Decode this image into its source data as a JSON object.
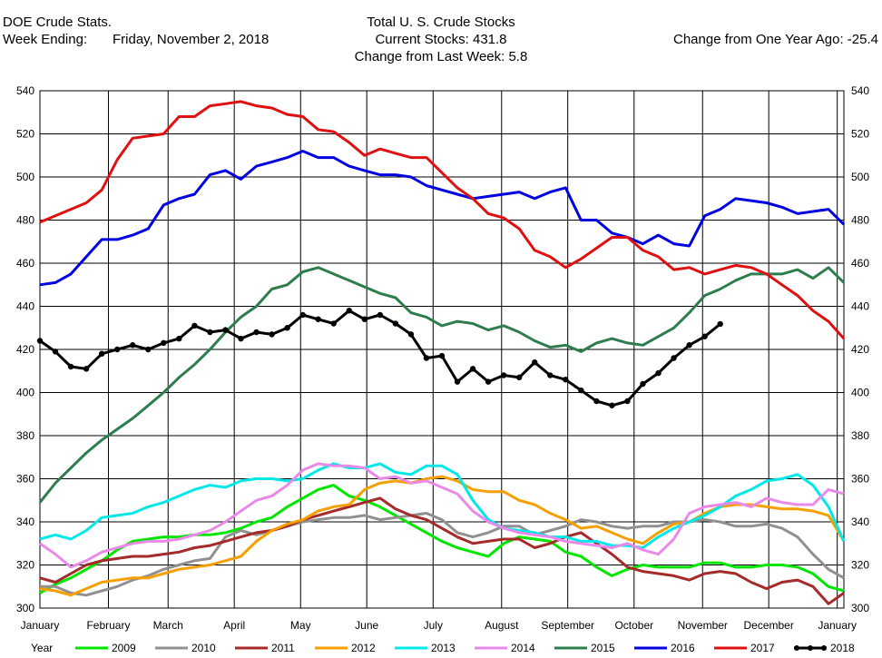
{
  "header": {
    "source_line": "DOE Crude Stats.",
    "week_label": "Week Ending:",
    "week_value": "Friday, November 2, 2018",
    "title": "Total U. S. Crude Stocks",
    "current_stocks": "Current Stocks: 431.8",
    "change_week": "Change from Last Week:   5.8",
    "change_year": "Change from One Year Ago: -25.4"
  },
  "chart_data": {
    "type": "line",
    "title": "Total U. S. Crude Stocks",
    "x_unit": "week of year",
    "xlim": [
      1,
      53
    ],
    "ylim": [
      300,
      540
    ],
    "yticks": [
      300,
      320,
      340,
      360,
      380,
      400,
      420,
      440,
      460,
      480,
      500,
      520,
      540
    ],
    "month_labels": [
      "January",
      "February",
      "March",
      "April",
      "May",
      "June",
      "July",
      "August",
      "September",
      "October",
      "November",
      "December",
      "January"
    ],
    "month_weeks": [
      1,
      5.43,
      9.29,
      13.57,
      17.86,
      22.14,
      26.43,
      30.86,
      35.14,
      39.43,
      43.86,
      48.14,
      52.57
    ],
    "grid": true,
    "legend_title": "Year",
    "legend_position": "bottom",
    "series": [
      {
        "name": "2009",
        "color": "#00e600",
        "marker": false,
        "values": [
          307,
          311,
          314,
          318,
          322,
          327,
          331,
          332,
          333,
          333,
          334,
          334,
          335,
          337,
          340,
          342,
          347,
          351,
          355,
          357,
          352,
          350,
          347,
          343,
          339,
          335,
          331,
          328,
          326,
          324,
          330,
          333,
          332,
          331,
          326,
          324,
          319,
          315,
          318,
          320,
          319,
          319,
          319,
          321,
          321,
          319,
          319,
          320,
          320,
          319,
          316,
          310,
          308
        ]
      },
      {
        "name": "2010",
        "color": "#909090",
        "marker": false,
        "values": [
          310,
          310,
          307,
          306,
          308,
          310,
          313,
          315,
          318,
          320,
          322,
          323,
          333,
          336,
          334,
          336,
          338,
          340,
          341,
          342,
          342,
          343,
          341,
          342,
          343,
          344,
          341,
          335,
          333,
          335,
          338,
          338,
          334,
          336,
          338,
          341,
          340,
          338,
          337,
          338,
          338,
          340,
          340,
          341,
          340,
          338,
          338,
          339,
          337,
          333,
          325,
          318,
          314
        ]
      },
      {
        "name": "2011",
        "color": "#a52a2a",
        "marker": false,
        "values": [
          314,
          312,
          316,
          320,
          322,
          323,
          324,
          324,
          325,
          326,
          328,
          329,
          331,
          333,
          335,
          336,
          338,
          341,
          343,
          345,
          347,
          349,
          351,
          346,
          343,
          341,
          337,
          333,
          330,
          331,
          332,
          332,
          328,
          330,
          333,
          335,
          330,
          325,
          319,
          317,
          316,
          315,
          313,
          316,
          317,
          316,
          312,
          309,
          312,
          313,
          310,
          302,
          307
        ]
      },
      {
        "name": "2012",
        "color": "#f5a000",
        "marker": false,
        "values": [
          309,
          308,
          306,
          309,
          312,
          313,
          314,
          314,
          316,
          318,
          319,
          320,
          322,
          324,
          331,
          336,
          339,
          341,
          345,
          347,
          348,
          355,
          358,
          359,
          358,
          360,
          361,
          359,
          355,
          354,
          354,
          350,
          348,
          344,
          341,
          337,
          338,
          335,
          332,
          330,
          335,
          339,
          340,
          344,
          347,
          348,
          348,
          347,
          346,
          346,
          345,
          343,
          331
        ]
      },
      {
        "name": "2013",
        "color": "#00e8e8",
        "marker": false,
        "values": [
          332,
          334,
          332,
          336,
          342,
          343,
          344,
          347,
          349,
          352,
          355,
          357,
          356,
          359,
          360,
          360,
          359,
          360,
          364,
          367,
          365,
          365,
          367,
          363,
          362,
          366,
          366,
          362,
          350,
          341,
          337,
          336,
          335,
          333,
          333,
          331,
          331,
          329,
          329,
          328,
          333,
          337,
          340,
          343,
          347,
          352,
          355,
          359,
          360,
          362,
          357,
          347,
          331
        ]
      },
      {
        "name": "2014",
        "color": "#e98ae9",
        "marker": false,
        "values": [
          330,
          325,
          319,
          322,
          326,
          328,
          330,
          331,
          331,
          332,
          334,
          336,
          340,
          345,
          350,
          352,
          357,
          364,
          367,
          366,
          366,
          365,
          360,
          361,
          358,
          359,
          356,
          353,
          345,
          340,
          337,
          335,
          334,
          333,
          331,
          330,
          329,
          328,
          330,
          327,
          325,
          332,
          344,
          347,
          348,
          349,
          347,
          351,
          349,
          348,
          348,
          355,
          353
        ]
      },
      {
        "name": "2015",
        "color": "#2e7d4f",
        "marker": false,
        "values": [
          349,
          358,
          365,
          372,
          378,
          383,
          388,
          394,
          400,
          407,
          413,
          420,
          428,
          435,
          440,
          448,
          450,
          456,
          458,
          455,
          452,
          449,
          446,
          444,
          437,
          435,
          431,
          433,
          432,
          429,
          431,
          428,
          424,
          421,
          422,
          419,
          423,
          425,
          423,
          422,
          426,
          430,
          437,
          445,
          448,
          452,
          455,
          455,
          455,
          457,
          453,
          458,
          451
        ]
      },
      {
        "name": "2016",
        "color": "#0000e0",
        "marker": false,
        "values": [
          450,
          451,
          455,
          463,
          471,
          471,
          473,
          476,
          487,
          490,
          492,
          501,
          503,
          499,
          505,
          507,
          509,
          512,
          509,
          509,
          505,
          503,
          501,
          501,
          500,
          496,
          494,
          492,
          490,
          491,
          492,
          493,
          490,
          493,
          495,
          480,
          480,
          474,
          472,
          469,
          473,
          469,
          468,
          482,
          485,
          490,
          489,
          488,
          486,
          483,
          484,
          485,
          478
        ]
      },
      {
        "name": "2017",
        "color": "#e01010",
        "marker": false,
        "values": [
          479,
          482,
          485,
          488,
          494,
          508,
          518,
          519,
          520,
          528,
          528,
          533,
          534,
          535,
          533,
          532,
          529,
          528,
          522,
          521,
          516,
          510,
          513,
          511,
          509,
          509,
          502,
          495,
          490,
          483,
          481,
          476,
          466,
          463,
          458,
          462,
          467,
          472,
          472,
          466,
          463,
          457,
          458,
          455,
          457,
          459,
          458,
          455,
          450,
          445,
          438,
          433,
          425
        ]
      },
      {
        "name": "2018",
        "color": "#000000",
        "marker": true,
        "values": [
          424,
          419,
          412,
          411,
          418,
          420,
          422,
          420,
          423,
          425,
          431,
          428,
          429,
          425,
          428,
          427,
          430,
          436,
          434,
          432,
          438,
          434,
          436,
          432,
          427,
          416,
          417,
          405,
          411,
          405,
          408,
          407,
          414,
          408,
          406,
          401,
          396,
          394,
          396,
          404,
          409,
          416,
          422,
          426,
          431.8
        ]
      }
    ]
  }
}
